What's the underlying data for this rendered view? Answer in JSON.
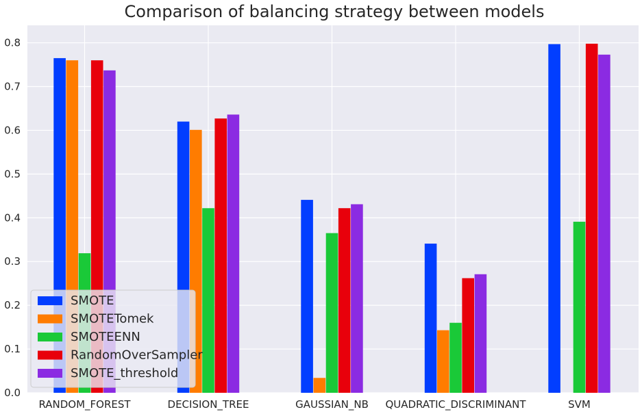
{
  "chart_data": {
    "type": "bar",
    "title": "Comparison of balancing strategy between models",
    "xlabel": "",
    "ylabel": "",
    "categories": [
      "RANDOM_FOREST",
      "DECISION_TREE",
      "GAUSSIAN_NB",
      "QUADRATIC_DISCRIMINANT",
      "SVM"
    ],
    "series": [
      {
        "name": "SMOTE",
        "color": "#023EFF",
        "values": [
          0.765,
          0.62,
          0.441,
          0.341,
          0.797
        ]
      },
      {
        "name": "SMOTETomek",
        "color": "#FF7C00",
        "values": [
          0.76,
          0.601,
          0.034,
          0.143,
          0.0
        ]
      },
      {
        "name": "SMOTEENN",
        "color": "#1AC938",
        "values": [
          0.319,
          0.422,
          0.365,
          0.16,
          0.391
        ]
      },
      {
        "name": "RandomOverSampler",
        "color": "#E8000B",
        "values": [
          0.76,
          0.627,
          0.422,
          0.262,
          0.798
        ]
      },
      {
        "name": "SMOTE_threshold",
        "color": "#8B2BE2",
        "values": [
          0.737,
          0.636,
          0.431,
          0.271,
          0.773
        ]
      }
    ],
    "ylim": [
      0,
      0.84
    ],
    "yticks": [
      "0.0",
      "0.1",
      "0.2",
      "0.3",
      "0.4",
      "0.5",
      "0.6",
      "0.7",
      "0.8"
    ],
    "grid": true,
    "legend_position": "lower-left",
    "background_color": "#EAEAF2"
  }
}
